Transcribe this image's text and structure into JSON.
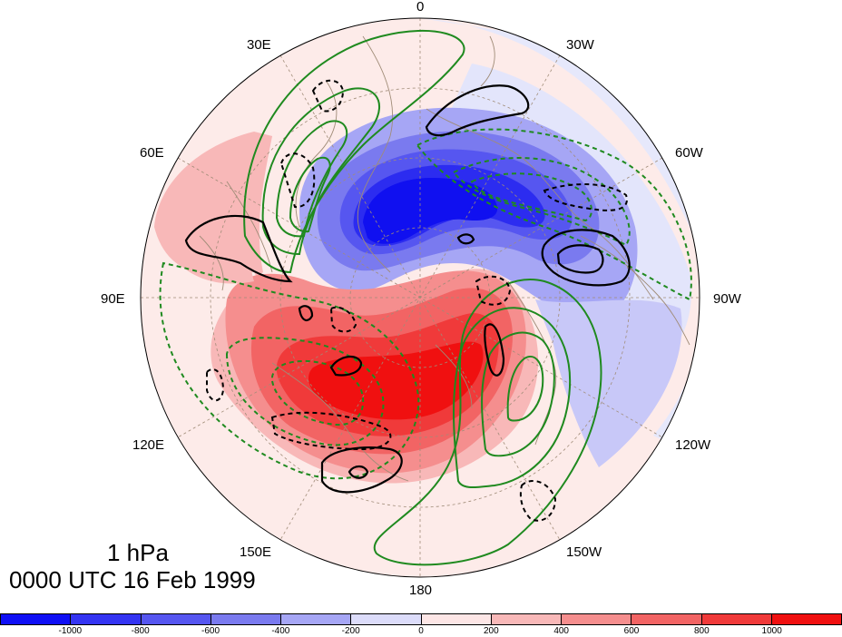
{
  "map": {
    "projection": "north-polar-stereographic",
    "longitude_labels": [
      {
        "key": "lon0",
        "text": "0"
      },
      {
        "key": "lon30w",
        "text": "30W"
      },
      {
        "key": "lon60w",
        "text": "60W"
      },
      {
        "key": "lon90w",
        "text": "90W"
      },
      {
        "key": "lon120w",
        "text": "120W"
      },
      {
        "key": "lon150w",
        "text": "150W"
      },
      {
        "key": "lon180",
        "text": "180"
      },
      {
        "key": "lon150e",
        "text": "150E"
      },
      {
        "key": "lon120e",
        "text": "120E"
      },
      {
        "key": "lon90e",
        "text": "90E"
      },
      {
        "key": "lon60e",
        "text": "60E"
      },
      {
        "key": "lon30e",
        "text": "30E"
      }
    ],
    "shading": "anomaly field, blue negative / red positive",
    "contours": {
      "green": "solid positive, dashed negative",
      "black": "solid positive, dashed negative"
    },
    "colors": {
      "coastline": "#a08c78",
      "graticule": "#a08c78",
      "green_contour": "#1f8a1f",
      "black_contour": "#000000"
    }
  },
  "title": {
    "level": "1 hPa",
    "time": "0000 UTC 16 Feb 1999"
  },
  "colorbar": {
    "colors": [
      "#0f0ff5",
      "#3434f2",
      "#5656f0",
      "#7a7aef",
      "#a6a6f5",
      "#dcdcfa",
      "#fde6e6",
      "#f8b8b8",
      "#f58e8e",
      "#f26464",
      "#f03a3a",
      "#f01010"
    ],
    "tick_labels": [
      "-1000",
      "-800",
      "-600",
      "-400",
      "-200",
      "0",
      "200",
      "400",
      "600",
      "800",
      "1000"
    ]
  }
}
